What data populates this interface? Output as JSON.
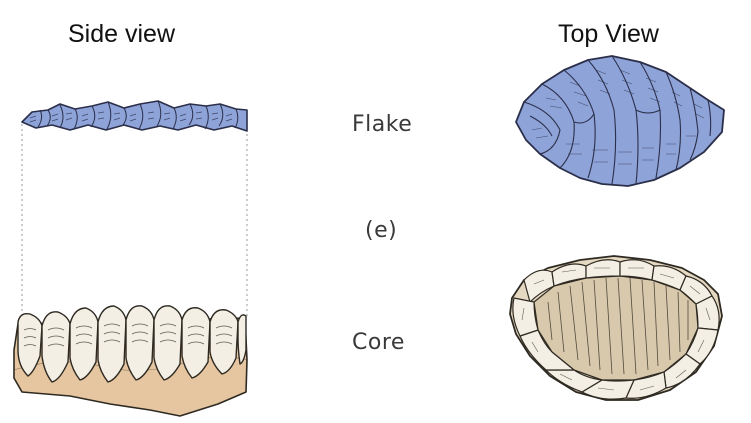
{
  "headings": {
    "side_view": "Side view",
    "top_view": "Top View"
  },
  "labels": {
    "flake": "Flake",
    "figure_letter": "(e)",
    "core": "Core"
  },
  "colors": {
    "flake_fill": "#8ea3d8",
    "flake_stroke": "#2b2f4a",
    "core_base": "#e6c6a0",
    "core_scar": "#f3efe4",
    "core_stroke": "#2e2a22",
    "dotted_guide": "#999999"
  }
}
